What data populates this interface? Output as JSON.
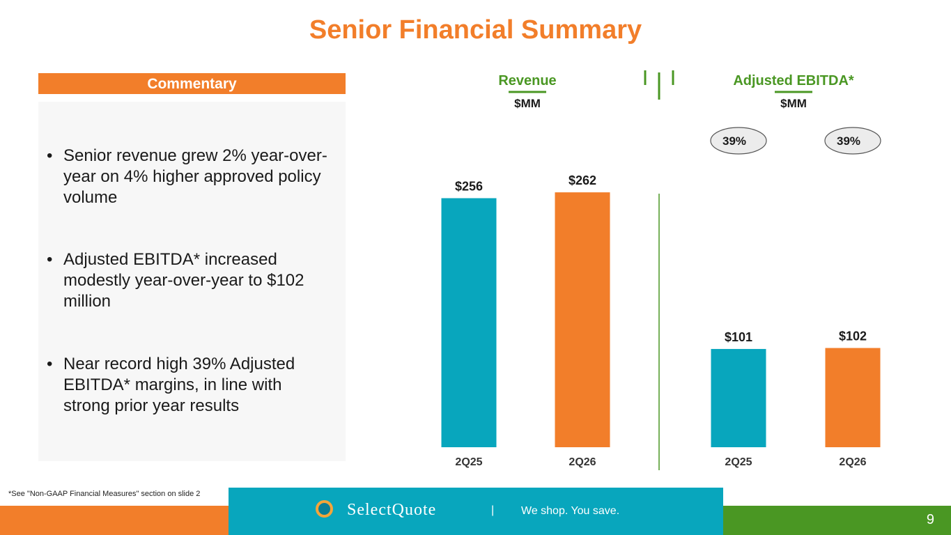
{
  "page": {
    "title": "Senior Financial Summary",
    "page_number": "9"
  },
  "commentary": {
    "header": "Commentary",
    "bullets": [
      "Senior revenue grew 2% year-over-year on 4% higher approved policy volume",
      "Adjusted EBITDA* increased modestly year-over-year to $102 million",
      "Near record high 39% Adjusted EBITDA* margins, in line with strong prior year results"
    ]
  },
  "chart_data": [
    {
      "type": "bar",
      "title": "Revenue",
      "subtitle": "$MM",
      "categories": [
        "2Q25",
        "2Q26"
      ],
      "values": [
        256,
        262
      ],
      "data_labels": [
        "$256",
        "$262"
      ],
      "colors": [
        "#08A6BD",
        "#F27E2A"
      ],
      "ylim": [
        0,
        290
      ]
    },
    {
      "type": "bar",
      "title": "Adjusted EBITDA*",
      "subtitle": "$MM",
      "categories": [
        "2Q25",
        "2Q26"
      ],
      "values": [
        101,
        102
      ],
      "data_labels": [
        "$101",
        "$102"
      ],
      "margins": [
        "39%",
        "39%"
      ],
      "colors": [
        "#08A6BD",
        "#F27E2A"
      ],
      "ylim": [
        0,
        290
      ]
    }
  ],
  "footnote": "*See \"Non-GAAP Financial Measures\" section on slide 2",
  "footer": {
    "brand": "SelectQuote",
    "divider": "|",
    "tagline": "We shop. You save."
  },
  "colors": {
    "orange": "#F27E2A",
    "teal": "#08A6BD",
    "green": "#4A9723"
  }
}
